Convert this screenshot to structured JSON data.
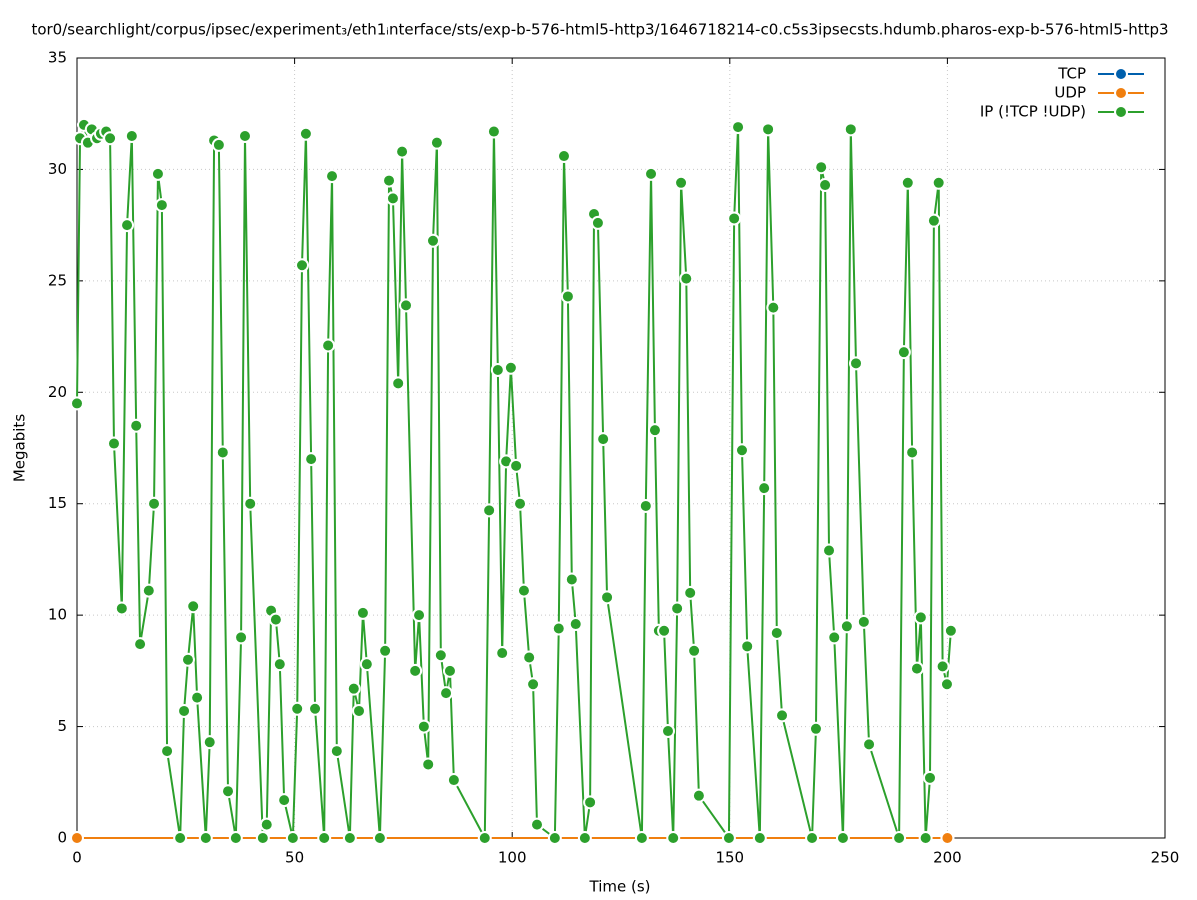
{
  "chart_data": {
    "type": "line",
    "title": "tor0/searchlight/corpus/ipsec/experiment₃/eth1ᵢnterface/sts/exp-b-576-html5-http3/1646718214-c0.c5s3ipsecsts.hdumb.pharos-exp-b-576-html5-http3",
    "xlabel": "Time (s)",
    "ylabel": "Megabits",
    "xlim": [
      0,
      250
    ],
    "xticks": [
      0,
      50,
      100,
      150,
      200,
      250
    ],
    "ylim": [
      0,
      35
    ],
    "yticks": [
      0,
      5,
      10,
      15,
      20,
      25,
      30,
      35
    ],
    "grid": true,
    "legend": "top-right",
    "series": [
      {
        "name": "TCP",
        "color": "#0060ad",
        "x": [
          0,
          200
        ],
        "values": [
          0,
          0
        ]
      },
      {
        "name": "UDP",
        "color": "#f07f0f",
        "x": [
          0,
          200
        ],
        "values": [
          0,
          0
        ]
      },
      {
        "name": "IP (!TCP  !UDP)",
        "color": "#2ca02c",
        "x": [
          0,
          0.7,
          1.6,
          2.5,
          3.4,
          4.6,
          5.5,
          6.7,
          7.6,
          8.5,
          10.3,
          11.5,
          12.6,
          13.6,
          14.5,
          16.5,
          17.7,
          18.6,
          19.5,
          20.7,
          23.7,
          24.6,
          25.5,
          26.7,
          27.6,
          29.6,
          30.5,
          31.5,
          32.6,
          33.5,
          34.7,
          36.5,
          37.7,
          38.6,
          39.8,
          42.7,
          43.6,
          44.6,
          45.7,
          46.6,
          47.6,
          49.6,
          50.6,
          51.7,
          52.6,
          53.8,
          54.7,
          56.8,
          57.7,
          58.6,
          59.7,
          62.7,
          63.6,
          64.8,
          65.7,
          66.6,
          69.6,
          70.8,
          71.7,
          72.6,
          73.8,
          74.7,
          75.6,
          77.7,
          78.6,
          79.7,
          80.7,
          81.8,
          82.7,
          83.6,
          84.8,
          85.7,
          86.6,
          93.7,
          94.7,
          95.8,
          96.7,
          97.7,
          98.6,
          99.7,
          100.9,
          101.8,
          102.7,
          103.9,
          104.8,
          105.7,
          109.8,
          110.7,
          111.9,
          112.8,
          113.7,
          114.6,
          116.7,
          117.9,
          118.8,
          119.7,
          120.9,
          121.8,
          129.8,
          130.7,
          131.9,
          132.8,
          133.7,
          134.9,
          135.8,
          137,
          137.9,
          138.8,
          140,
          140.9,
          141.8,
          142.9,
          149.8,
          151,
          151.9,
          152.8,
          154,
          156.9,
          157.9,
          158.8,
          160,
          160.8,
          162,
          168.9,
          169.8,
          171,
          171.9,
          172.8,
          174,
          176,
          176.9,
          177.8,
          179,
          180.8,
          182,
          188.9,
          190,
          190.9,
          191.9,
          193,
          193.9,
          195,
          196,
          196.9,
          198,
          198.9,
          199.9,
          200.8
        ],
        "values": [
          19.5,
          31.4,
          32,
          31.2,
          31.8,
          31.4,
          31.6,
          31.7,
          31.4,
          17.7,
          10.3,
          27.5,
          31.5,
          18.5,
          8.7,
          11.1,
          15,
          29.8,
          28.4,
          3.9,
          0,
          5.7,
          8,
          10.4,
          6.3,
          0,
          4.3,
          31.3,
          31.1,
          17.3,
          2.1,
          0,
          9,
          31.5,
          15,
          0,
          0.6,
          10.2,
          9.8,
          7.8,
          1.7,
          0,
          5.8,
          25.7,
          31.6,
          17,
          5.8,
          0,
          22.1,
          29.7,
          3.9,
          0,
          6.7,
          5.7,
          10.1,
          7.8,
          0,
          8.4,
          29.5,
          28.7,
          20.4,
          30.8,
          23.9,
          7.5,
          10,
          5,
          3.3,
          26.8,
          31.2,
          8.2,
          6.5,
          7.5,
          2.6,
          0,
          14.7,
          31.7,
          21,
          8.3,
          16.9,
          21.1,
          16.7,
          15,
          11.1,
          8.1,
          6.9,
          0.6,
          0,
          9.4,
          30.6,
          24.3,
          11.6,
          9.6,
          0,
          1.6,
          28,
          27.6,
          17.9,
          10.8,
          0,
          14.9,
          29.8,
          18.3,
          9.3,
          9.3,
          4.8,
          0,
          10.3,
          29.4,
          25.1,
          11,
          8.4,
          1.9,
          0,
          27.8,
          31.9,
          17.4,
          8.6,
          0,
          15.7,
          31.8,
          23.8,
          9.2,
          5.5,
          0,
          4.9,
          30.1,
          29.3,
          12.9,
          9,
          0,
          9.5,
          31.8,
          21.3,
          9.7,
          4.2,
          0,
          21.8,
          29.4,
          17.3,
          7.6,
          9.9,
          0,
          2.7,
          27.7,
          29.4,
          7.7,
          6.9,
          9.3
        ]
      }
    ]
  }
}
